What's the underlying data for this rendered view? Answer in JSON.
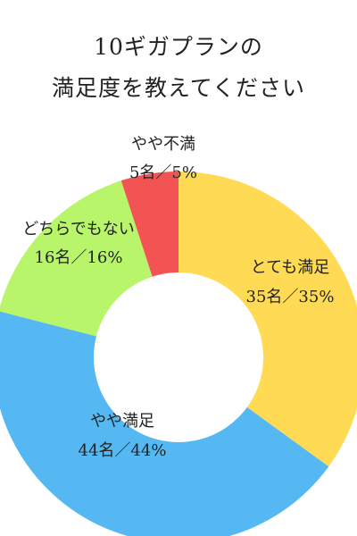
{
  "chart_data": {
    "type": "pie",
    "style": "donut",
    "title": [
      "10ギガプランの",
      "満足度を教えてください"
    ],
    "slices": [
      {
        "label": "とても満足",
        "value": 35,
        "value_label": "35名／35%",
        "color": "#FFDA55"
      },
      {
        "label": "やや満足",
        "value": 44,
        "value_label": "44名／44%",
        "color": "#56B8F2"
      },
      {
        "label": "どちらでもない",
        "value": 16,
        "value_label": "16名／16%",
        "color": "#B9F56A"
      },
      {
        "label": "やや不満",
        "value": 5,
        "value_label": "5名／5%",
        "color": "#F25353"
      }
    ]
  }
}
